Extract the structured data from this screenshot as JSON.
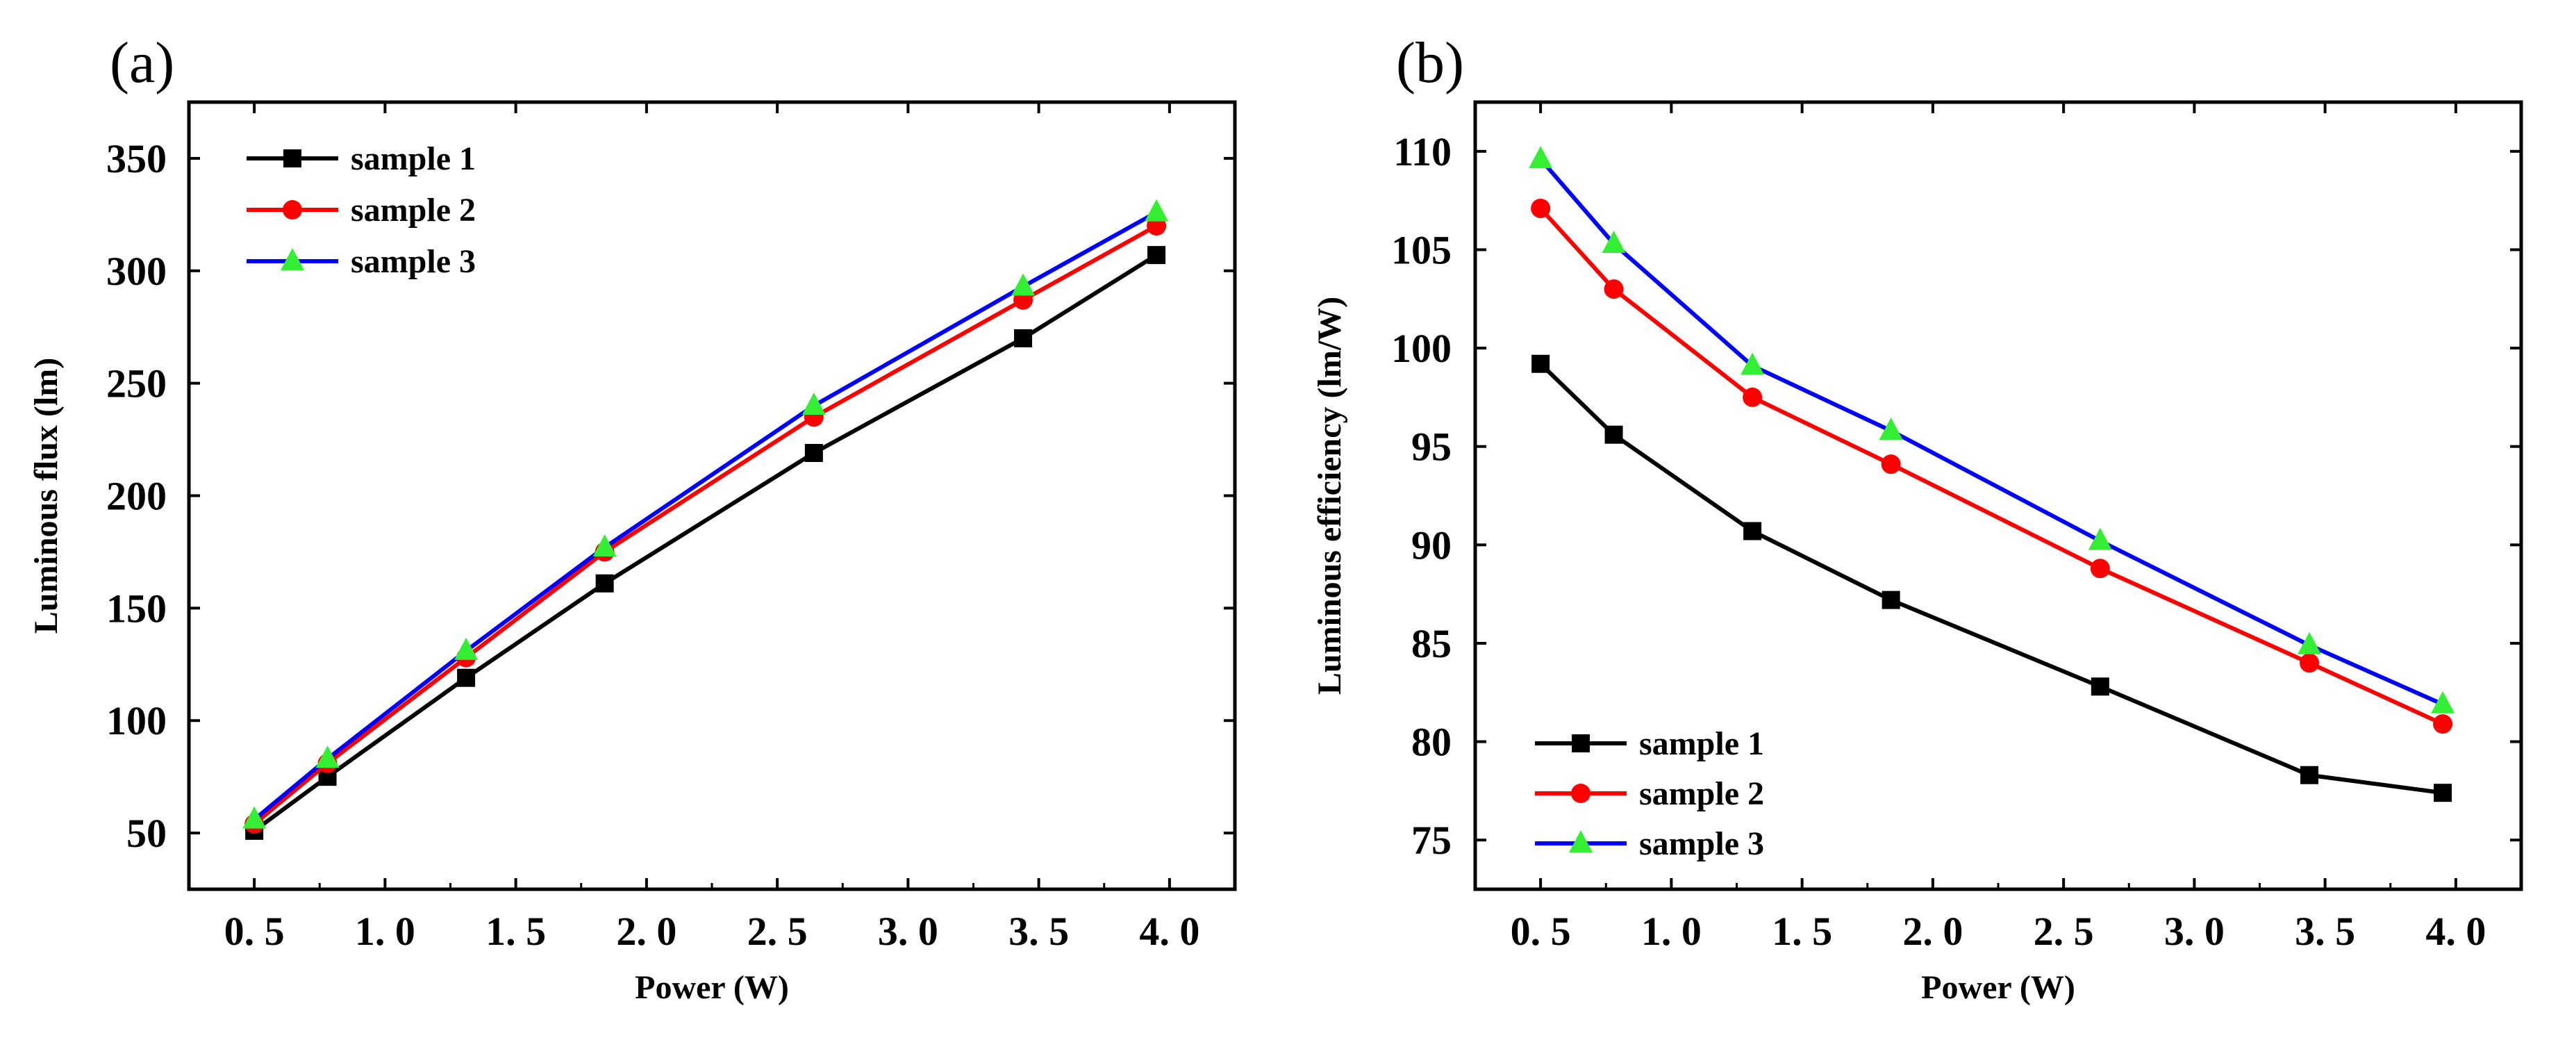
{
  "chart_data": [
    {
      "type": "line",
      "panel_label": "(a)",
      "xlabel": "Power (W)",
      "ylabel": "Luminous flux (lm)",
      "xlim": [
        0.25,
        4.25
      ],
      "ylim": [
        25,
        375
      ],
      "x_ticks": [
        0.5,
        1.0,
        1.5,
        2.0,
        2.5,
        3.0,
        3.5,
        4.0
      ],
      "x_tick_labels": [
        "0. 5",
        "1. 0",
        "1. 5",
        "2. 0",
        "2. 5",
        "3. 0",
        "3. 5",
        "4. 0"
      ],
      "y_ticks": [
        50,
        100,
        150,
        200,
        250,
        300,
        350
      ],
      "y_tick_labels": [
        "50",
        "100",
        "150",
        "200",
        "250",
        "300",
        "350"
      ],
      "legend_position": "top-left",
      "grid": false,
      "x": [
        0.5,
        0.78,
        1.31,
        1.84,
        2.64,
        3.44,
        3.95
      ],
      "series": [
        {
          "name": "sample 1",
          "color": "#000000",
          "marker": "square",
          "values": [
            51,
            75,
            119,
            161,
            219,
            270,
            307
          ]
        },
        {
          "name": "sample 2",
          "color": "#ff0000",
          "marker": "circle",
          "values": [
            54,
            81,
            128,
            175,
            235,
            287,
            320
          ]
        },
        {
          "name": "sample 3",
          "color": "#0000ff",
          "marker": "triangle",
          "marker_color": "#33ee33",
          "values": [
            56,
            83,
            131,
            177,
            240,
            293,
            326
          ]
        }
      ]
    },
    {
      "type": "line",
      "panel_label": "(b)",
      "xlabel": "Power (W)",
      "ylabel": "Luminous efficiency (lm/W)",
      "xlim": [
        0.25,
        4.25
      ],
      "ylim": [
        72.5,
        112.5
      ],
      "x_ticks": [
        0.5,
        1.0,
        1.5,
        2.0,
        2.5,
        3.0,
        3.5,
        4.0
      ],
      "x_tick_labels": [
        "0. 5",
        "1. 0",
        "1. 5",
        "2. 0",
        "2. 5",
        "3. 0",
        "3. 5",
        "4. 0"
      ],
      "y_ticks": [
        75,
        80,
        85,
        90,
        95,
        100,
        105,
        110
      ],
      "y_tick_labels": [
        "75",
        "80",
        "85",
        "90",
        "95",
        "100",
        "105",
        "110"
      ],
      "legend_position": "bottom-left",
      "grid": false,
      "x": [
        0.5,
        0.78,
        1.31,
        1.84,
        2.64,
        3.44,
        3.95
      ],
      "series": [
        {
          "name": "sample 1",
          "color": "#000000",
          "marker": "square",
          "values": [
            99.2,
            95.6,
            90.7,
            87.2,
            82.8,
            78.3,
            77.4
          ]
        },
        {
          "name": "sample 2",
          "color": "#ff0000",
          "marker": "circle",
          "values": [
            107.1,
            103.0,
            97.5,
            94.1,
            88.8,
            84.0,
            80.9
          ]
        },
        {
          "name": "sample 3",
          "color": "#0000ff",
          "marker": "triangle",
          "marker_color": "#33ee33",
          "values": [
            109.6,
            105.3,
            99.1,
            95.8,
            90.2,
            84.9,
            81.9
          ]
        }
      ]
    }
  ]
}
